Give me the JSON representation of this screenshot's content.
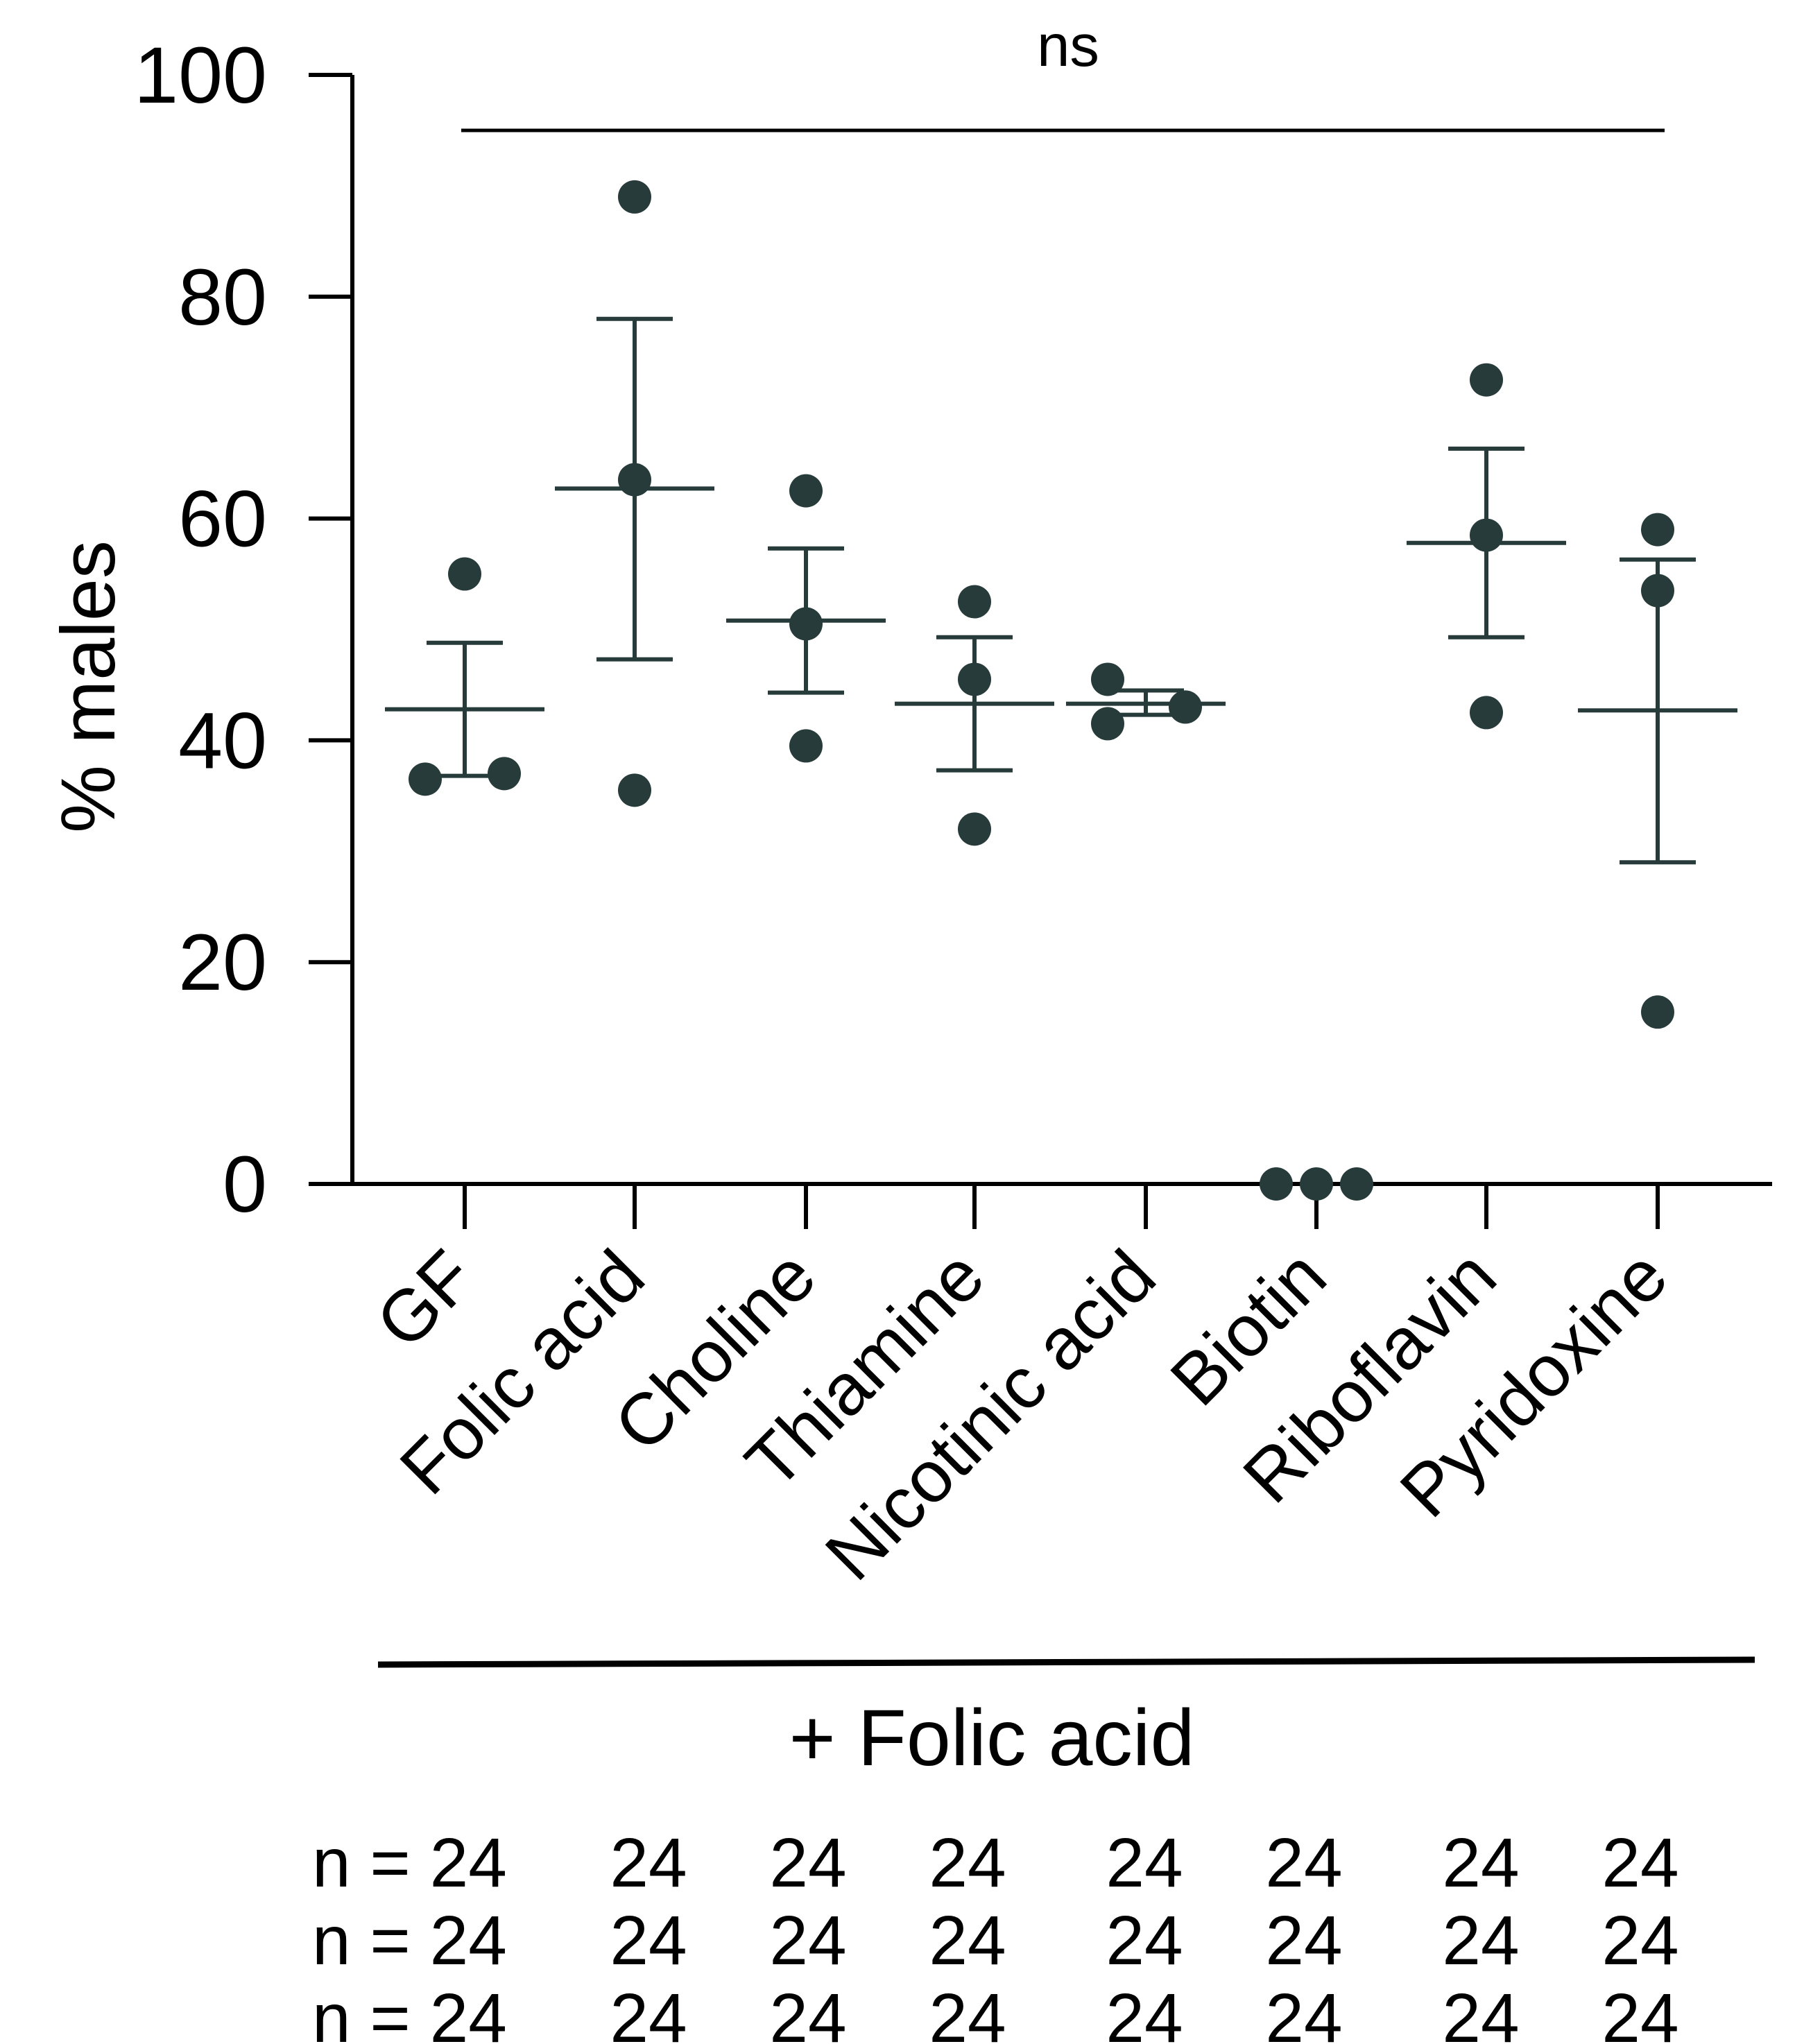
{
  "chart_data": {
    "type": "scatter",
    "ylabel": "% males",
    "ylim": [
      0,
      100
    ],
    "yticks": [
      "0",
      "20",
      "40",
      "60",
      "80",
      "100"
    ],
    "categories": [
      "GF",
      "Folic acid",
      "Choline",
      "Thiamine",
      "Nicotinic acid",
      "Biotin",
      "Riboflavin",
      "Pyridoxine"
    ],
    "points": [
      [
        36.5,
        37,
        55
      ],
      [
        89,
        63.5,
        35.5
      ],
      [
        62.5,
        50.5,
        39.5
      ],
      [
        52.5,
        45.5,
        32
      ],
      [
        45.5,
        41.5,
        43
      ],
      [
        0,
        0,
        0
      ],
      [
        72.5,
        58.5,
        42.5
      ],
      [
        59,
        53.5,
        15.5
      ]
    ],
    "mean": [
      42.8,
      62.7,
      50.8,
      43.3,
      43.3,
      0,
      57.8,
      42.7
    ],
    "error_high": [
      48.8,
      78,
      57.3,
      49.3,
      44.5,
      0,
      66.3,
      56.3
    ],
    "error_low": [
      36.8,
      47.3,
      44.3,
      37.3,
      42.3,
      0,
      49.3,
      29
    ],
    "significance_label": "ns",
    "group_label": "+ Folic acid",
    "n_rows": [
      {
        "prefix": "n = ",
        "values": [
          "24",
          "24",
          "24",
          "24",
          "24",
          "24",
          "24",
          "24"
        ]
      },
      {
        "prefix": "n = ",
        "values": [
          "24",
          "24",
          "24",
          "24",
          "24",
          "24",
          "24",
          "24"
        ]
      },
      {
        "prefix": "n = ",
        "values": [
          "24",
          "24",
          "24",
          "24",
          "24",
          "24",
          "24",
          "24"
        ]
      }
    ],
    "colors": {
      "marker": "#263b3a",
      "axis": "#000000"
    }
  }
}
